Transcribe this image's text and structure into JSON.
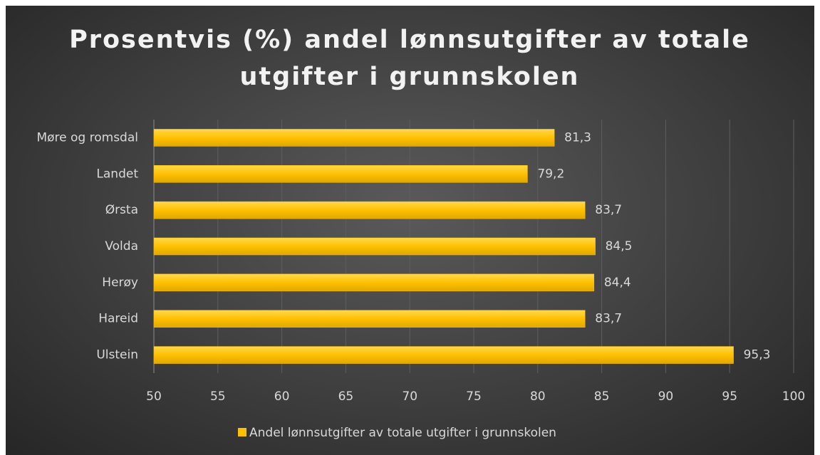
{
  "chart_data": {
    "type": "bar",
    "orientation": "horizontal",
    "title": "Prosentvis (%) andel lønnsutgifter av totale utgifter i grunnskolen",
    "categories": [
      "Møre og romsdal",
      "Landet",
      "Ørsta",
      "Volda",
      "Herøy",
      "Hareid",
      "Ulstein"
    ],
    "series": [
      {
        "name": "Andel lønnsutgifter av totale utgifter i grunnskolen",
        "color": "#ffc000",
        "values": [
          81.3,
          79.2,
          83.7,
          84.5,
          84.4,
          83.7,
          95.3
        ],
        "value_labels": [
          "81,3",
          "79,2",
          "83,7",
          "84,5",
          "84,4",
          "83,7",
          "95,3"
        ]
      }
    ],
    "xlim": [
      50,
      100
    ],
    "xticks": [
      50,
      55,
      60,
      65,
      70,
      75,
      80,
      85,
      90,
      95,
      100
    ],
    "grid": true,
    "legend": "bottom"
  }
}
